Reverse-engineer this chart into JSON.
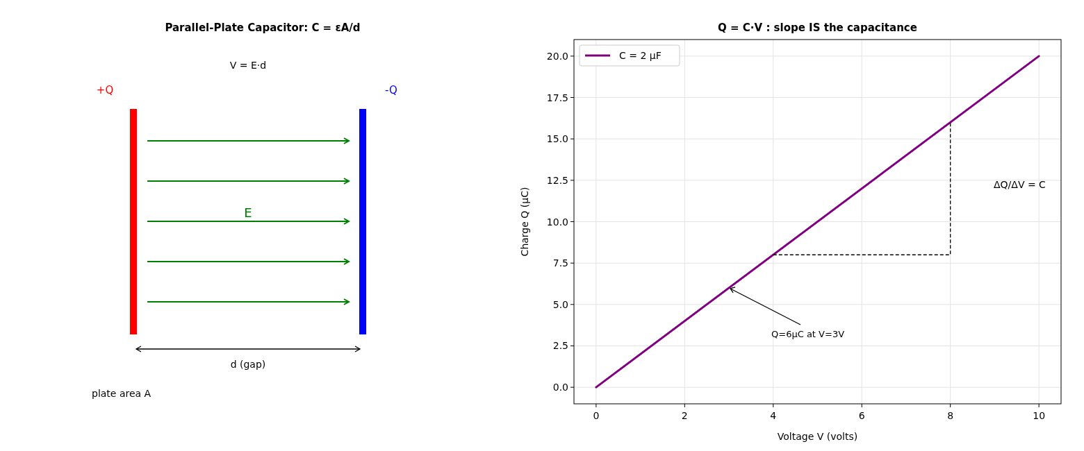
{
  "chart_data": [
    {
      "type": "other",
      "title": "Parallel-Plate Capacitor: C = εA/d",
      "annotations": [
        "V = E·d",
        "+Q",
        "-Q",
        "E",
        "d (gap)",
        "plate area A"
      ]
    },
    {
      "type": "line",
      "title": "Q = C·V : slope IS the capacitance",
      "xlabel": "Voltage V (volts)",
      "ylabel": "Charge Q (μC)",
      "series": [
        {
          "name": "C = 2 μF",
          "color": "#800080",
          "x": [
            0,
            10
          ],
          "values": [
            0,
            20
          ]
        },
        {
          "type": "line",
          "color": "#000000",
          "line_style": "dashed",
          "x": [
            4,
            8,
            8
          ],
          "values": [
            8,
            8,
            16
          ]
        }
      ],
      "xlim": [
        -0.5,
        10.5
      ],
      "xticks": [
        0,
        2,
        4,
        6,
        8,
        10
      ],
      "ylim": [
        -1,
        21
      ],
      "yticks": [
        {
          "value": 0,
          "label": "0.0"
        },
        {
          "value": 2.5,
          "label": "2.5"
        },
        {
          "value": 5,
          "label": "5.0"
        },
        {
          "value": 7.5,
          "label": "7.5"
        },
        {
          "value": 10,
          "label": "10.0"
        },
        {
          "value": 12.5,
          "label": "12.5"
        },
        {
          "value": 15,
          "label": "15.0"
        },
        {
          "value": 17.5,
          "label": "17.5"
        },
        {
          "value": 20,
          "label": "20.0"
        }
      ],
      "grid": true,
      "legend": "top left",
      "line_style": "solid",
      "marker": "none",
      "annotations": [
        {
          "text": "Q=6μC at V=3V",
          "x": 3,
          "y": 6
        },
        "ΔQ/ΔV = C"
      ]
    }
  ]
}
